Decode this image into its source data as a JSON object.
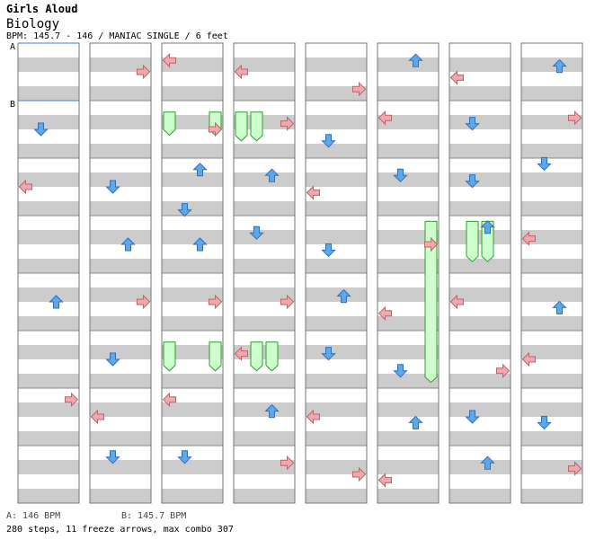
{
  "song": {
    "artist": "Girls Aloud",
    "title": "Biology",
    "info": "BPM: 145.7 - 146 / MANIAC SINGLE / 6 feet"
  },
  "markers": {
    "a": "A",
    "b": "B"
  },
  "footer": {
    "bpm_a": "A: 146 BPM",
    "bpm_b": "B: 145.7 BPM",
    "stats": "280 steps, 11 freeze arrows, max combo 307"
  },
  "colors": {
    "stripe": "#cccccc",
    "blue_arrow": "#5aa8ee",
    "red_arrow": "#f1a8ac",
    "freeze": "#ccffcc",
    "bpm_line": "#3f7fd6"
  },
  "chart": {
    "columns": 8,
    "measures_per_column": 8,
    "lanes": [
      "left",
      "down",
      "up",
      "right"
    ],
    "notes": [
      [
        0,
        1.5,
        1
      ],
      [
        0,
        2.5,
        0
      ],
      [
        0,
        4.5,
        2
      ],
      [
        0,
        6.2,
        3
      ],
      [
        1,
        0.5,
        3
      ],
      [
        1,
        2.5,
        1
      ],
      [
        1,
        3.5,
        2
      ],
      [
        1,
        4.5,
        3
      ],
      [
        1,
        5.5,
        1
      ],
      [
        1,
        6.5,
        0
      ],
      [
        1,
        7.2,
        1
      ],
      [
        2,
        0.3,
        0
      ],
      [
        2,
        1.5,
        3
      ],
      [
        2,
        2.2,
        2
      ],
      [
        2,
        2.9,
        1
      ],
      [
        2,
        3.5,
        2
      ],
      [
        2,
        4.5,
        3
      ],
      [
        2,
        6.2,
        0
      ],
      [
        2,
        7.2,
        1
      ],
      [
        3,
        0.5,
        0
      ],
      [
        3,
        1.4,
        3
      ],
      [
        3,
        2.3,
        2
      ],
      [
        3,
        3.3,
        1
      ],
      [
        3,
        4.5,
        3
      ],
      [
        3,
        5.4,
        0
      ],
      [
        3,
        6.4,
        2
      ],
      [
        3,
        7.3,
        3
      ],
      [
        4,
        0.8,
        3
      ],
      [
        4,
        1.7,
        1
      ],
      [
        4,
        2.6,
        0
      ],
      [
        4,
        3.6,
        1
      ],
      [
        4,
        4.4,
        2
      ],
      [
        4,
        5.4,
        1
      ],
      [
        4,
        6.5,
        0
      ],
      [
        4,
        7.5,
        3
      ],
      [
        5,
        0.3,
        2
      ],
      [
        5,
        1.3,
        0
      ],
      [
        5,
        2.3,
        1
      ],
      [
        5,
        3.5,
        3
      ],
      [
        5,
        4.7,
        0
      ],
      [
        5,
        5.7,
        1
      ],
      [
        5,
        6.6,
        2
      ],
      [
        5,
        7.6,
        0
      ],
      [
        6,
        0.6,
        0
      ],
      [
        6,
        1.4,
        1
      ],
      [
        6,
        2.4,
        1
      ],
      [
        6,
        3.2,
        2
      ],
      [
        6,
        4.5,
        0
      ],
      [
        6,
        5.7,
        3
      ],
      [
        6,
        6.5,
        1
      ],
      [
        6,
        7.3,
        2
      ],
      [
        7,
        0.4,
        2
      ],
      [
        7,
        1.3,
        3
      ],
      [
        7,
        2.1,
        1
      ],
      [
        7,
        3.4,
        0
      ],
      [
        7,
        4.6,
        2
      ],
      [
        7,
        5.5,
        0
      ],
      [
        7,
        6.6,
        1
      ],
      [
        7,
        7.4,
        3
      ]
    ],
    "freezes": [
      [
        2,
        1.2,
        1.6,
        0
      ],
      [
        2,
        1.2,
        1.6,
        3
      ],
      [
        2,
        5.2,
        5.7,
        0
      ],
      [
        2,
        5.2,
        5.7,
        3
      ],
      [
        3,
        1.2,
        1.7,
        0
      ],
      [
        3,
        1.2,
        1.7,
        1
      ],
      [
        3,
        5.2,
        5.7,
        1
      ],
      [
        3,
        5.2,
        5.7,
        2
      ],
      [
        5,
        3.1,
        5.9,
        3
      ],
      [
        6,
        3.1,
        3.8,
        1
      ],
      [
        6,
        3.1,
        3.8,
        2
      ]
    ]
  }
}
